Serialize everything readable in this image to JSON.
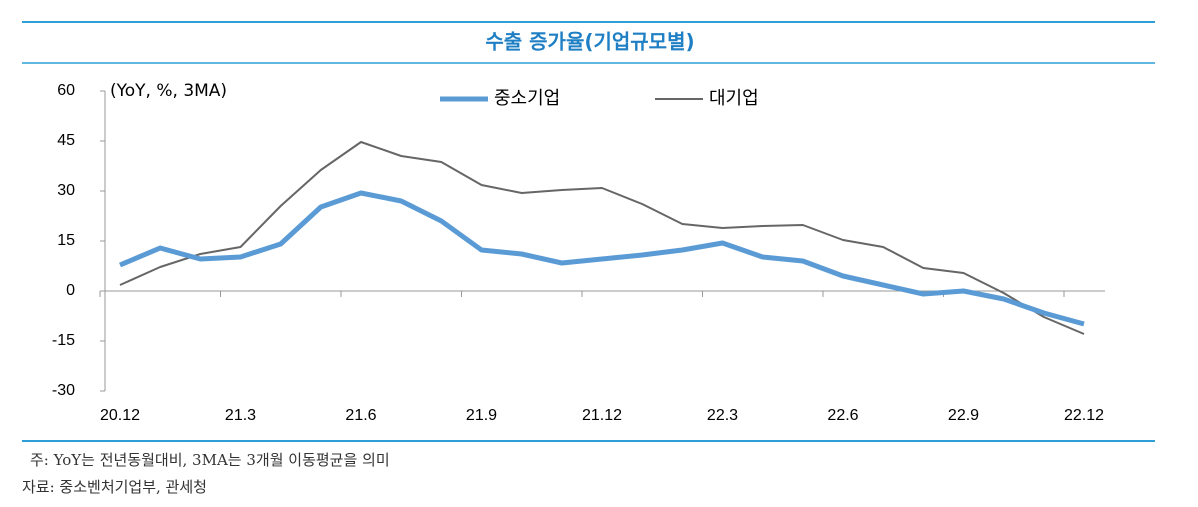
{
  "chart_data": {
    "type": "line",
    "title": "수출 증가율(기업규모별)",
    "y_unit": "(YoY, %, 3MA)",
    "categories": [
      "20.12",
      null,
      null,
      "21.3",
      null,
      null,
      "21.6",
      null,
      null,
      "21.9",
      null,
      null,
      "21.12",
      null,
      null,
      "22.3",
      null,
      null,
      "22.6",
      null,
      null,
      "22.9",
      null,
      null,
      "22.12"
    ],
    "series": [
      {
        "name": "중소기업",
        "color": "#5b9bd5",
        "values": [
          7.8,
          12.9,
          9.6,
          10.2,
          14.1,
          25.2,
          29.4,
          27.0,
          21.0,
          12.3,
          11.1,
          8.4,
          9.6,
          10.8,
          12.3,
          14.4,
          10.2,
          9.0,
          4.5,
          1.8,
          -0.9,
          0,
          -2.4,
          -6.6,
          -9.9
        ]
      },
      {
        "name": "대기업",
        "color": "#666666",
        "values": [
          1.8,
          7.2,
          11.1,
          13.2,
          25.5,
          36.3,
          44.7,
          40.5,
          38.7,
          31.8,
          29.4,
          30.3,
          30.9,
          26.1,
          20.1,
          18.9,
          19.5,
          19.8,
          15.3,
          13.2,
          6.9,
          5.4,
          -0.6,
          -7.8,
          -12.9
        ]
      }
    ],
    "ylim": [
      -30,
      60
    ],
    "yticks": [
      -30,
      -15,
      0,
      15,
      30,
      45,
      60
    ],
    "legend": "top"
  },
  "notes": [
    "주: YoY는 전년동월대비, 3MA는 3개월 이동평균을 의미",
    "자료: 중소벤처기업부, 관세청"
  ]
}
